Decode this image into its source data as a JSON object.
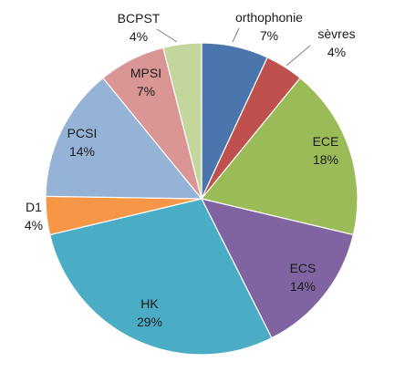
{
  "chart_data": {
    "type": "pie",
    "title": "",
    "slices": [
      {
        "label": "orthophonie",
        "value": 7,
        "pct_label": "7%",
        "color": "#4a76ad"
      },
      {
        "label": "sèvres",
        "value": 4,
        "pct_label": "4%",
        "color": "#c0504d"
      },
      {
        "label": "ECE",
        "value": 18,
        "pct_label": "18%",
        "color": "#9bbb59"
      },
      {
        "label": "ECS",
        "value": 14,
        "pct_label": "14%",
        "color": "#8064a2"
      },
      {
        "label": "HK",
        "value": 29,
        "pct_label": "29%",
        "color": "#4bacc6"
      },
      {
        "label": "D1",
        "value": 4,
        "pct_label": "4%",
        "color": "#f79646"
      },
      {
        "label": "PCSI",
        "value": 14,
        "pct_label": "14%",
        "color": "#95b3d7"
      },
      {
        "label": "MPSI",
        "value": 7,
        "pct_label": "7%",
        "color": "#d99694"
      },
      {
        "label": "BCPST",
        "value": 4,
        "pct_label": "4%",
        "color": "#c3d69b"
      }
    ],
    "start_angle_deg": 0,
    "direction": "clockwise",
    "legend": "none"
  }
}
